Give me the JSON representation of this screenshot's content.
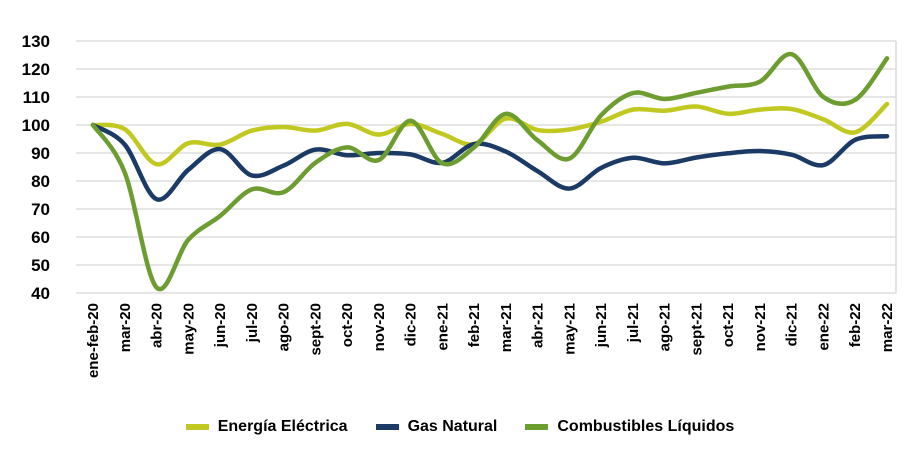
{
  "chart_data": {
    "type": "line",
    "title": "",
    "xlabel": "",
    "ylabel": "",
    "categories": [
      "ene-feb-20",
      "mar-20",
      "abr-20",
      "may-20",
      "jun-20",
      "jul-20",
      "ago-20",
      "sept-20",
      "oct-20",
      "nov-20",
      "dic-20",
      "ene-21",
      "feb-21",
      "mar-21",
      "abr-21",
      "may-21",
      "jun-21",
      "jul-21",
      "ago-21",
      "sept-21",
      "oct-21",
      "nov-21",
      "dic-21",
      "ene-22",
      "feb-22",
      "mar-22"
    ],
    "series": [
      {
        "name": "Energía Eléctrica",
        "color": "#c1c920",
        "values": [
          100,
          98.5,
          86,
          93.5,
          93,
          98,
          99.3,
          98,
          100.4,
          96.6,
          100.4,
          96.8,
          93.2,
          102.3,
          98.2,
          98.4,
          101.2,
          105.5,
          105.1,
          106.6,
          104,
          105.5,
          105.7,
          102,
          97.4,
          107.5
        ]
      },
      {
        "name": "Gas Natural",
        "color": "#1b3a66",
        "values": [
          100,
          93,
          73.5,
          84,
          91.4,
          82,
          85.5,
          91.2,
          89.2,
          90,
          89.5,
          86.5,
          93.2,
          90.5,
          83.5,
          77.3,
          84.7,
          88.3,
          86.3,
          88.4,
          89.9,
          90.7,
          89.4,
          85.7,
          94.7,
          96
        ]
      },
      {
        "name": "Combustibles Líquidos",
        "color": "#6d9c31",
        "values": [
          100,
          83,
          42,
          59,
          67.5,
          77,
          76,
          86.5,
          92,
          87.5,
          101.5,
          86.3,
          92,
          104,
          94.5,
          88,
          103.5,
          111.4,
          109.3,
          111.5,
          113.7,
          115.5,
          125.3,
          110,
          109,
          123.8
        ]
      }
    ],
    "ylim": [
      40,
      130
    ],
    "y_ticks": [
      40,
      50,
      60,
      70,
      80,
      90,
      100,
      110,
      120,
      130
    ],
    "grid": true,
    "smooth": true,
    "legend_position": "bottom"
  },
  "style": {
    "gridline_color": "#d6d6d6",
    "background": "#ffffff",
    "text_color": "#000000"
  }
}
